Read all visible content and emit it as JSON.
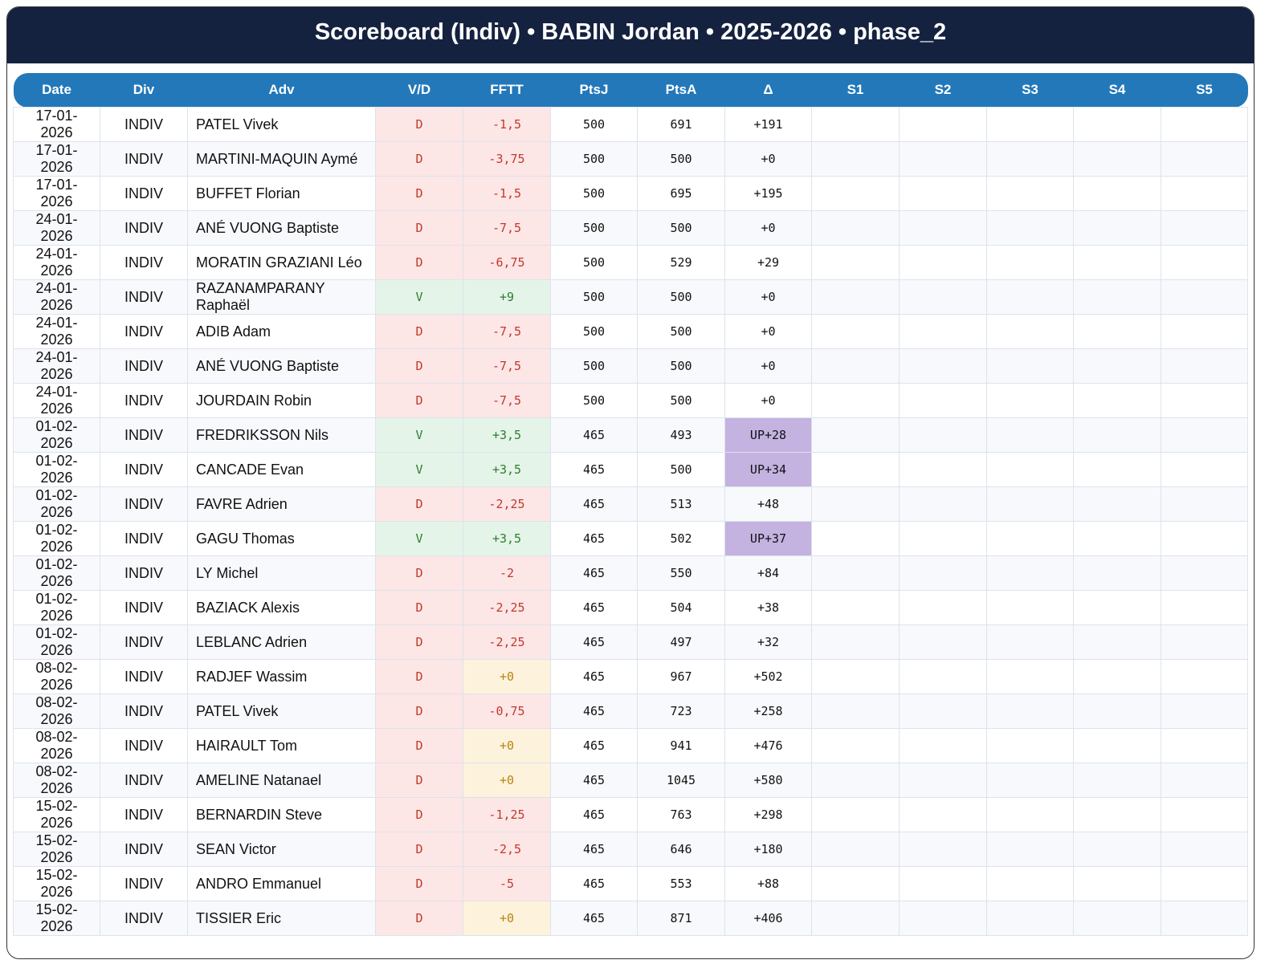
{
  "header": {
    "title": "Scoreboard (Indiv) • BABIN Jordan • 2025-2026 • phase_2"
  },
  "table": {
    "columns": [
      "Date",
      "Div",
      "Adv",
      "V/D",
      "FFTT",
      "PtsJ",
      "PtsA",
      "Δ",
      "S1",
      "S2",
      "S3",
      "S4",
      "S5"
    ],
    "rows": [
      [
        "17-01-2026",
        "INDIV",
        "PATEL Vivek",
        "D",
        "-1,5",
        "500",
        "691",
        "+191"
      ],
      [
        "17-01-2026",
        "INDIV",
        "MARTINI-MAQUIN Aymé",
        "D",
        "-3,75",
        "500",
        "500",
        "+0"
      ],
      [
        "17-01-2026",
        "INDIV",
        "BUFFET Florian",
        "D",
        "-1,5",
        "500",
        "695",
        "+195"
      ],
      [
        "24-01-2026",
        "INDIV",
        "ANÉ VUONG Baptiste",
        "D",
        "-7,5",
        "500",
        "500",
        "+0"
      ],
      [
        "24-01-2026",
        "INDIV",
        "MORATIN GRAZIANI Léo",
        "D",
        "-6,75",
        "500",
        "529",
        "+29"
      ],
      [
        "24-01-2026",
        "INDIV",
        "RAZANAMPARANY Raphaël",
        "V",
        "+9",
        "500",
        "500",
        "+0"
      ],
      [
        "24-01-2026",
        "INDIV",
        "ADIB Adam",
        "D",
        "-7,5",
        "500",
        "500",
        "+0"
      ],
      [
        "24-01-2026",
        "INDIV",
        "ANÉ VUONG Baptiste",
        "D",
        "-7,5",
        "500",
        "500",
        "+0"
      ],
      [
        "24-01-2026",
        "INDIV",
        "JOURDAIN Robin",
        "D",
        "-7,5",
        "500",
        "500",
        "+0"
      ],
      [
        "01-02-2026",
        "INDIV",
        "FREDRIKSSON Nils",
        "V",
        "+3,5",
        "465",
        "493",
        "UP+28"
      ],
      [
        "01-02-2026",
        "INDIV",
        "CANCADE Evan",
        "V",
        "+3,5",
        "465",
        "500",
        "UP+34"
      ],
      [
        "01-02-2026",
        "INDIV",
        "FAVRE Adrien",
        "D",
        "-2,25",
        "465",
        "513",
        "+48"
      ],
      [
        "01-02-2026",
        "INDIV",
        "GAGU Thomas",
        "V",
        "+3,5",
        "465",
        "502",
        "UP+37"
      ],
      [
        "01-02-2026",
        "INDIV",
        "LY Michel",
        "D",
        "-2",
        "465",
        "550",
        "+84"
      ],
      [
        "01-02-2026",
        "INDIV",
        "BAZIACK Alexis",
        "D",
        "-2,25",
        "465",
        "504",
        "+38"
      ],
      [
        "01-02-2026",
        "INDIV",
        "LEBLANC Adrien",
        "D",
        "-2,25",
        "465",
        "497",
        "+32"
      ],
      [
        "08-02-2026",
        "INDIV",
        "RADJEF Wassim",
        "D",
        "+0",
        "465",
        "967",
        "+502"
      ],
      [
        "08-02-2026",
        "INDIV",
        "PATEL Vivek",
        "D",
        "-0,75",
        "465",
        "723",
        "+258"
      ],
      [
        "08-02-2026",
        "INDIV",
        "HAIRAULT Tom",
        "D",
        "+0",
        "465",
        "941",
        "+476"
      ],
      [
        "08-02-2026",
        "INDIV",
        "AMELINE Natanael",
        "D",
        "+0",
        "465",
        "1045",
        "+580"
      ],
      [
        "15-02-2026",
        "INDIV",
        "BERNARDIN Steve",
        "D",
        "-1,25",
        "465",
        "763",
        "+298"
      ],
      [
        "15-02-2026",
        "INDIV",
        "SEAN Victor",
        "D",
        "-2,5",
        "465",
        "646",
        "+180"
      ],
      [
        "15-02-2026",
        "INDIV",
        "ANDRO Emmanuel",
        "D",
        "-5",
        "465",
        "553",
        "+88"
      ],
      [
        "15-02-2026",
        "INDIV",
        "TISSIER Eric",
        "D",
        "+0",
        "465",
        "871",
        "+406"
      ]
    ]
  }
}
